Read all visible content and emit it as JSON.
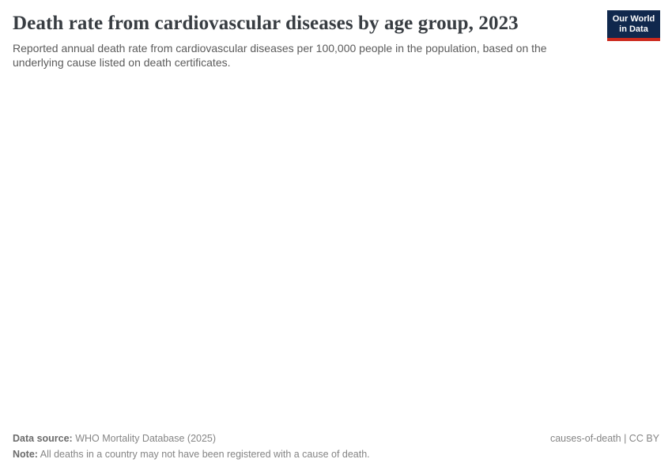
{
  "header": {
    "title": "Death rate from cardiovascular diseases by age group, 2023",
    "subtitle": "Reported annual death rate from cardiovascular diseases per 100,000 people in the population, based on the underlying cause listed on death certificates."
  },
  "logo": {
    "line1": "Our World",
    "line2": "in Data",
    "bg_color": "#10284d",
    "accent_color": "#cc2a1d"
  },
  "chart_data": {
    "type": "bar",
    "title": "Death rate from cardiovascular diseases by age group, 2023",
    "subtitle": "Reported annual death rate from cardiovascular diseases per 100,000 people in the population, based on the underlying cause listed on death certificates.",
    "categories": [],
    "values": [],
    "note": "Chart plot area is empty in the screenshot; no data points, axes, or legend are rendered."
  },
  "footer": {
    "data_source_label": "Data source:",
    "data_source_value": " WHO Mortality Database (2025)",
    "note_label": "Note:",
    "note_value": " All deaths in a country may not have been registered with a cause of death.",
    "attribution": "causes-of-death | CC BY"
  },
  "colors": {
    "title_text": "#383d42",
    "subtitle_text": "#5b5b5b",
    "footer_text": "#858585",
    "logo_bg": "#10284d",
    "logo_accent": "#cc2a1d"
  }
}
